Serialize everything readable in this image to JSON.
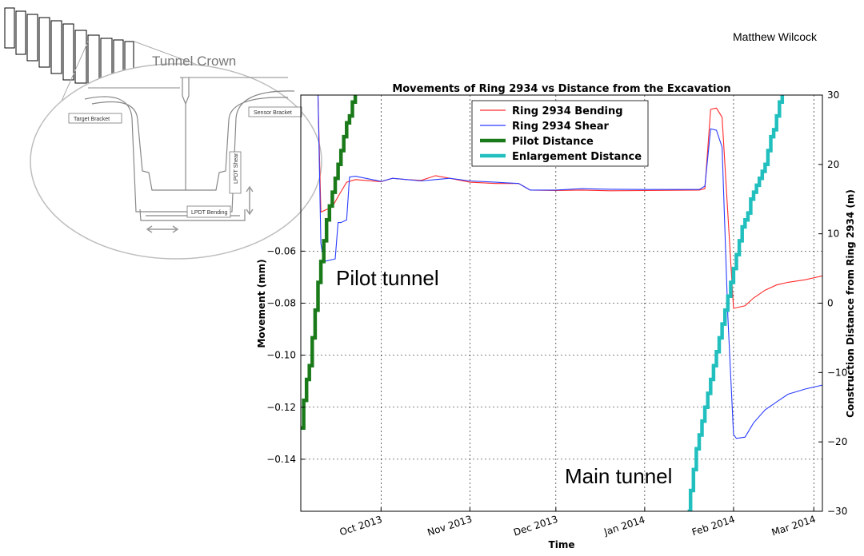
{
  "author": "Matthew Wilcock",
  "annotations": {
    "pilot": "Pilot tunnel",
    "main": "Main tunnel"
  },
  "inset": {
    "crown": "Tunnel Crown",
    "target": "Target Bracket",
    "sensor": "Sensor Bracket",
    "shear": "LPDT Shear",
    "bending": "LPDT Bending"
  },
  "colors": {
    "bending": "#ff2a2a",
    "shear": "#2a3cff",
    "pilot": "#1a7a1a",
    "enlargement": "#22bfbf"
  },
  "chart_data": {
    "type": "line",
    "title": "Movements of Ring 2934 vs Distance from the Excavation",
    "xlabel": "Time",
    "ylabel": "Movement (mm)",
    "y2label": "Construction Distance from Ring 2934 (m)",
    "xlim": [
      "2013-09-03",
      "2014-03-04"
    ],
    "ylim": [
      -0.16,
      0.0
    ],
    "y2lim": [
      -30,
      30
    ],
    "grid": true,
    "legend_position": "top-center",
    "xticks": [
      {
        "date": "2013-10-01",
        "label": "Oct 2013"
      },
      {
        "date": "2013-11-01",
        "label": "Nov 2013"
      },
      {
        "date": "2013-12-01",
        "label": "Dec 2013"
      },
      {
        "date": "2014-01-01",
        "label": "Jan 2014"
      },
      {
        "date": "2014-02-01",
        "label": "Feb 2014"
      },
      {
        "date": "2014-03-01",
        "label": "Mar 2014"
      }
    ],
    "yticks": [
      {
        "value": -0.06,
        "label": "−0.06"
      },
      {
        "value": -0.08,
        "label": "−0.08"
      },
      {
        "value": -0.1,
        "label": "−0.10"
      },
      {
        "value": -0.12,
        "label": "−0.12"
      },
      {
        "value": -0.14,
        "label": "−0.14"
      }
    ],
    "y2ticks": [
      {
        "value": 30,
        "label": "30"
      },
      {
        "value": 20,
        "label": "20"
      },
      {
        "value": 10,
        "label": "10"
      },
      {
        "value": 0,
        "label": "0"
      },
      {
        "value": -10,
        "label": "−10"
      },
      {
        "value": -20,
        "label": "−20"
      },
      {
        "value": -30,
        "label": "−30"
      }
    ],
    "series": [
      {
        "name": "Ring 2934 Bending",
        "axis": "left",
        "style": "thin",
        "x": [
          "2013-09-03",
          "2013-09-09",
          "2013-09-10",
          "2013-09-12",
          "2013-09-14",
          "2013-09-16",
          "2013-09-19",
          "2013-09-22",
          "2013-10-01",
          "2013-10-05",
          "2013-10-10",
          "2013-10-15",
          "2013-10-20",
          "2013-10-25",
          "2013-11-01",
          "2013-11-10",
          "2013-11-18",
          "2013-11-22",
          "2013-12-01",
          "2013-12-10",
          "2013-12-20",
          "2014-01-01",
          "2014-01-10",
          "2014-01-20",
          "2014-01-22",
          "2014-01-24",
          "2014-01-26",
          "2014-01-28",
          "2014-02-01",
          "2014-02-03",
          "2014-02-05",
          "2014-02-08",
          "2014-02-12",
          "2014-02-16",
          "2014-02-20",
          "2014-02-26",
          "2014-03-04"
        ],
        "values": [
          0.0,
          0.0,
          -0.045,
          -0.044,
          -0.043,
          -0.039,
          -0.0335,
          -0.0325,
          -0.0333,
          -0.032,
          -0.0325,
          -0.0328,
          -0.031,
          -0.032,
          -0.0335,
          -0.034,
          -0.034,
          -0.0365,
          -0.0367,
          -0.0365,
          -0.0368,
          -0.0367,
          -0.0366,
          -0.0365,
          -0.036,
          -0.0055,
          -0.005,
          -0.0085,
          -0.082,
          -0.0815,
          -0.081,
          -0.078,
          -0.075,
          -0.073,
          -0.072,
          -0.071,
          -0.0695
        ]
      },
      {
        "name": "Ring 2934 Shear",
        "axis": "left",
        "style": "thin",
        "x": [
          "2013-09-03",
          "2013-09-09",
          "2013-09-10",
          "2013-09-11",
          "2013-09-15",
          "2013-09-16",
          "2013-09-17",
          "2013-09-19",
          "2013-09-20",
          "2013-09-22",
          "2013-10-01",
          "2013-10-05",
          "2013-10-10",
          "2013-10-15",
          "2013-10-20",
          "2013-10-25",
          "2013-11-01",
          "2013-11-10",
          "2013-11-18",
          "2013-11-22",
          "2013-12-01",
          "2013-12-10",
          "2013-12-20",
          "2014-01-01",
          "2014-01-10",
          "2014-01-20",
          "2014-01-22",
          "2014-01-24",
          "2014-01-26",
          "2014-01-28",
          "2014-01-30",
          "2014-02-01",
          "2014-02-02",
          "2014-02-05",
          "2014-02-08",
          "2014-02-12",
          "2014-02-16",
          "2014-02-20",
          "2014-02-26",
          "2014-03-04"
        ],
        "values": [
          0.0,
          0.0,
          -0.057,
          -0.064,
          -0.063,
          -0.049,
          -0.049,
          -0.048,
          -0.0315,
          -0.0312,
          -0.0332,
          -0.032,
          -0.0325,
          -0.033,
          -0.0325,
          -0.032,
          -0.033,
          -0.0335,
          -0.034,
          -0.0365,
          -0.0365,
          -0.036,
          -0.0362,
          -0.0363,
          -0.0363,
          -0.0363,
          -0.035,
          -0.013,
          -0.0135,
          -0.02,
          -0.085,
          -0.1305,
          -0.132,
          -0.1315,
          -0.126,
          -0.121,
          -0.118,
          -0.115,
          -0.113,
          -0.1115
        ]
      },
      {
        "name": "Pilot Distance",
        "axis": "right",
        "style": "step-thick",
        "x": [
          "2013-09-03",
          "2013-09-04",
          "2013-09-05",
          "2013-09-06",
          "2013-09-07",
          "2013-09-08",
          "2013-09-09",
          "2013-09-10",
          "2013-09-11",
          "2013-09-12",
          "2013-09-13",
          "2013-09-14",
          "2013-09-15",
          "2013-09-16",
          "2013-09-17",
          "2013-09-18",
          "2013-09-19",
          "2013-09-20",
          "2013-09-21",
          "2013-09-22"
        ],
        "values": [
          -18,
          -14,
          -11,
          -9,
          -5,
          -1,
          3,
          6,
          9,
          12,
          14,
          16,
          18,
          20,
          22,
          24,
          26,
          27,
          29,
          31
        ]
      },
      {
        "name": "Enlargement Distance",
        "axis": "right",
        "style": "step-thick",
        "x": [
          "2014-01-16",
          "2014-01-17",
          "2014-01-18",
          "2014-01-19",
          "2014-01-20",
          "2014-01-21",
          "2014-01-22",
          "2014-01-23",
          "2014-01-24",
          "2014-01-25",
          "2014-01-26",
          "2014-01-27",
          "2014-01-28",
          "2014-01-29",
          "2014-01-30",
          "2014-01-31",
          "2014-02-01",
          "2014-02-02",
          "2014-02-03",
          "2014-02-04",
          "2014-02-05",
          "2014-02-06",
          "2014-02-07",
          "2014-02-08",
          "2014-02-09",
          "2014-02-10",
          "2014-02-11",
          "2014-02-12",
          "2014-02-13",
          "2014-02-14",
          "2014-02-15",
          "2014-02-16",
          "2014-02-17",
          "2014-02-18"
        ],
        "values": [
          -30,
          -27,
          -24,
          -21,
          -19,
          -17,
          -15,
          -13,
          -11,
          -9,
          -7,
          -5,
          -3,
          -1,
          1,
          3,
          5,
          7,
          9,
          11,
          12,
          13,
          15,
          16,
          17,
          18,
          19,
          20,
          22,
          24,
          25,
          27,
          29,
          31
        ]
      }
    ]
  }
}
